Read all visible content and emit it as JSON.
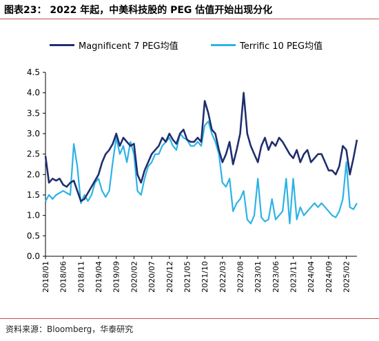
{
  "header": {
    "title": "图表23： 2022 年起，中美科技股的 PEG 估值开始出现分化"
  },
  "footer": {
    "source": "资料来源：Bloomberg，华泰研究"
  },
  "colors": {
    "magnificent": "#1f2e6e",
    "terrific": "#2bb3e6",
    "accent_rule": "#c0504d"
  },
  "chart_data": {
    "type": "line",
    "title": "",
    "xlabel": "",
    "ylabel": "",
    "ylim": [
      0,
      4.5
    ],
    "yticks": [
      "0.0",
      "0.5",
      "1.0",
      "1.5",
      "2.0",
      "2.5",
      "3.0",
      "3.5",
      "4.0",
      "4.5"
    ],
    "xlim": [
      "2018-01",
      "2025-05"
    ],
    "xticks": [
      "2018/01",
      "2018/06",
      "2018/11",
      "2019/04",
      "2019/09",
      "2020/02",
      "2020/07",
      "2020/12",
      "2021/05",
      "2021/10",
      "2022/03",
      "2022/08",
      "2023/01",
      "2023/06",
      "2023/11",
      "2024/04",
      "2024/09",
      "2025/02"
    ],
    "legend": "top",
    "grid": false,
    "series": [
      {
        "name": "Magnificent 7 PEG均值",
        "x": [
          "2018-01",
          "2018-02",
          "2018-03",
          "2018-04",
          "2018-05",
          "2018-06",
          "2018-07",
          "2018-08",
          "2018-09",
          "2018-10",
          "2018-11",
          "2018-12",
          "2019-01",
          "2019-02",
          "2019-03",
          "2019-04",
          "2019-05",
          "2019-06",
          "2019-07",
          "2019-08",
          "2019-09",
          "2019-10",
          "2019-11",
          "2019-12",
          "2020-01",
          "2020-02",
          "2020-03",
          "2020-04",
          "2020-05",
          "2020-06",
          "2020-07",
          "2020-08",
          "2020-09",
          "2020-10",
          "2020-11",
          "2020-12",
          "2021-01",
          "2021-02",
          "2021-03",
          "2021-04",
          "2021-05",
          "2021-06",
          "2021-07",
          "2021-08",
          "2021-09",
          "2021-10",
          "2021-11",
          "2021-12",
          "2022-01",
          "2022-02",
          "2022-03",
          "2022-04",
          "2022-05",
          "2022-06",
          "2022-07",
          "2022-08",
          "2022-09",
          "2022-10",
          "2022-11",
          "2022-12",
          "2023-01",
          "2023-02",
          "2023-03",
          "2023-04",
          "2023-05",
          "2023-06",
          "2023-07",
          "2023-08",
          "2023-09",
          "2023-10",
          "2023-11",
          "2023-12",
          "2024-01",
          "2024-02",
          "2024-03",
          "2024-04",
          "2024-05",
          "2024-06",
          "2024-07",
          "2024-08",
          "2024-09",
          "2024-10",
          "2024-11",
          "2024-12",
          "2025-01",
          "2025-02",
          "2025-03",
          "2025-04",
          "2025-05"
        ],
        "values": [
          2.45,
          1.8,
          1.9,
          1.85,
          1.9,
          1.75,
          1.7,
          1.8,
          1.85,
          1.6,
          1.35,
          1.4,
          1.55,
          1.7,
          1.85,
          2.0,
          2.3,
          2.5,
          2.6,
          2.75,
          3.0,
          2.7,
          2.9,
          2.8,
          2.7,
          2.75,
          2.0,
          1.8,
          2.1,
          2.3,
          2.5,
          2.6,
          2.7,
          2.9,
          2.8,
          3.0,
          2.85,
          2.75,
          3.0,
          3.1,
          2.85,
          2.8,
          2.8,
          2.9,
          2.8,
          3.8,
          3.5,
          3.1,
          3.0,
          2.6,
          2.3,
          2.5,
          2.8,
          2.25,
          2.6,
          3.0,
          4.0,
          3.0,
          2.7,
          2.5,
          2.3,
          2.7,
          2.9,
          2.6,
          2.8,
          2.7,
          2.9,
          2.8,
          2.65,
          2.5,
          2.4,
          2.6,
          2.3,
          2.5,
          2.6,
          2.3,
          2.4,
          2.5,
          2.5,
          2.3,
          2.1,
          2.1,
          2.0,
          2.2,
          2.7,
          2.6,
          2.0,
          2.4,
          2.85
        ]
      },
      {
        "name": "Terrific 10 PEG均值",
        "x": [
          "2018-01",
          "2018-02",
          "2018-03",
          "2018-04",
          "2018-05",
          "2018-06",
          "2018-07",
          "2018-08",
          "2018-09",
          "2018-10",
          "2018-11",
          "2018-12",
          "2019-01",
          "2019-02",
          "2019-03",
          "2019-04",
          "2019-05",
          "2019-06",
          "2019-07",
          "2019-08",
          "2019-09",
          "2019-10",
          "2019-11",
          "2019-12",
          "2020-01",
          "2020-02",
          "2020-03",
          "2020-04",
          "2020-05",
          "2020-06",
          "2020-07",
          "2020-08",
          "2020-09",
          "2020-10",
          "2020-11",
          "2020-12",
          "2021-01",
          "2021-02",
          "2021-03",
          "2021-04",
          "2021-05",
          "2021-06",
          "2021-07",
          "2021-08",
          "2021-09",
          "2021-10",
          "2021-11",
          "2021-12",
          "2022-01",
          "2022-02",
          "2022-03",
          "2022-04",
          "2022-05",
          "2022-06",
          "2022-07",
          "2022-08",
          "2022-09",
          "2022-10",
          "2022-11",
          "2022-12",
          "2023-01",
          "2023-02",
          "2023-03",
          "2023-04",
          "2023-05",
          "2023-06",
          "2023-07",
          "2023-08",
          "2023-09",
          "2023-10",
          "2023-11",
          "2023-12",
          "2024-01",
          "2024-02",
          "2024-03",
          "2024-04",
          "2024-05",
          "2024-06",
          "2024-07",
          "2024-08",
          "2024-09",
          "2024-10",
          "2024-11",
          "2024-12",
          "2025-01",
          "2025-02",
          "2025-03",
          "2025-04",
          "2025-05"
        ],
        "values": [
          1.35,
          1.5,
          1.4,
          1.5,
          1.55,
          1.6,
          1.55,
          1.5,
          2.75,
          2.2,
          1.3,
          1.5,
          1.35,
          1.5,
          1.8,
          1.9,
          1.6,
          1.45,
          1.6,
          2.3,
          2.9,
          2.5,
          2.7,
          2.3,
          2.8,
          2.5,
          1.6,
          1.5,
          1.9,
          2.2,
          2.3,
          2.5,
          2.5,
          2.7,
          2.8,
          2.9,
          2.7,
          2.6,
          3.0,
          2.9,
          2.85,
          2.7,
          2.7,
          2.8,
          2.7,
          3.2,
          3.3,
          3.0,
          2.8,
          2.5,
          1.8,
          1.7,
          1.9,
          1.1,
          1.3,
          1.4,
          1.6,
          0.9,
          0.8,
          1.0,
          1.9,
          0.95,
          0.85,
          0.9,
          1.4,
          0.9,
          1.0,
          1.1,
          1.9,
          0.8,
          1.9,
          0.9,
          1.2,
          1.0,
          1.1,
          1.2,
          1.3,
          1.2,
          1.3,
          1.2,
          1.1,
          1.0,
          0.95,
          1.1,
          1.4,
          2.3,
          1.2,
          1.15,
          1.3
        ]
      }
    ]
  }
}
